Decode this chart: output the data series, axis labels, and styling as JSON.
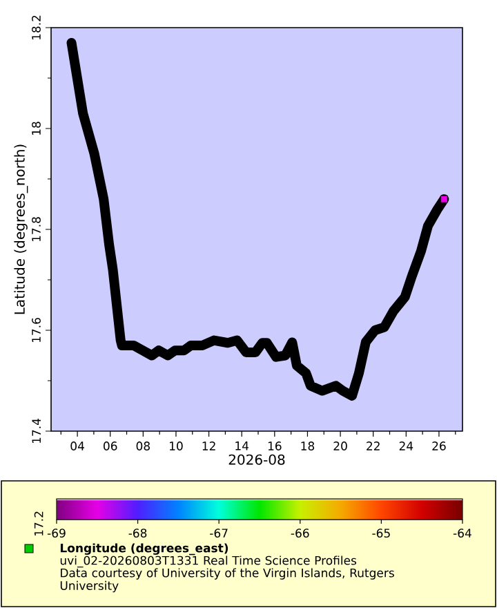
{
  "chart_data": {
    "type": "line",
    "xlabel": "2026-08",
    "ylabel": "Latitude (degrees_north)",
    "clabel": "**Longitude (degrees_east)**",
    "annotations": [
      "uvi_02-20260803T1331 Real Time Science Profiles",
      "Data courtesy of University of the Virgin Islands, Rutgers University",
      "17.2"
    ],
    "xlim": [
      2.4,
      27.43
    ],
    "ylim": [
      17.4,
      18.2
    ],
    "xticks": [
      {
        "value": 3,
        "label": null
      },
      {
        "value": 4,
        "label": "04"
      },
      {
        "value": 5,
        "label": null
      },
      {
        "value": 6,
        "label": "06"
      },
      {
        "value": 7,
        "label": null
      },
      {
        "value": 8,
        "label": "08"
      },
      {
        "value": 9,
        "label": null
      },
      {
        "value": 10,
        "label": "10"
      },
      {
        "value": 11,
        "label": null
      },
      {
        "value": 12,
        "label": "12"
      },
      {
        "value": 13,
        "label": null
      },
      {
        "value": 14,
        "label": "14"
      },
      {
        "value": 15,
        "label": null
      },
      {
        "value": 16,
        "label": "16"
      },
      {
        "value": 17,
        "label": null
      },
      {
        "value": 18,
        "label": "18"
      },
      {
        "value": 19,
        "label": null
      },
      {
        "value": 20,
        "label": "20"
      },
      {
        "value": 21,
        "label": null
      },
      {
        "value": 22,
        "label": "22"
      },
      {
        "value": 23,
        "label": null
      },
      {
        "value": 24,
        "label": "24"
      },
      {
        "value": 25,
        "label": null
      },
      {
        "value": 26,
        "label": "26"
      },
      {
        "value": 27,
        "label": null
      }
    ],
    "yticks": [
      17.4,
      {
        "value": 17.5,
        "label": null
      },
      17.6,
      {
        "value": 17.7,
        "label": null
      },
      17.8,
      {
        "value": 17.9,
        "label": null
      },
      18,
      {
        "value": 18.1,
        "label": null
      },
      18.2
    ],
    "clim": [
      -69,
      -64
    ],
    "cticks": [
      -69,
      -68,
      -67,
      -66,
      -65,
      -64
    ],
    "series": [
      {
        "color": "#000000",
        "x": [
          3.64,
          4.34,
          5.03,
          5.6,
          5.93,
          6.16,
          6.63,
          6.71,
          7.42,
          7.97,
          8.53,
          8.95,
          9.5,
          9.94,
          10.49,
          10.91,
          11.61,
          12.31,
          13.15,
          13.72,
          14.27,
          14.83,
          15.25,
          15.53,
          16.09,
          16.65,
          17.07,
          17.35,
          17.91,
          18.19,
          18.89,
          19.73,
          20.15,
          20.71,
          21.13,
          21.55,
          22.11,
          22.67,
          23.23,
          23.93,
          24.35,
          24.91,
          25.33,
          25.89,
          26.31
        ],
        "values": [
          18.17,
          18.03,
          17.95,
          17.86,
          17.77,
          17.72,
          17.58,
          17.57,
          17.57,
          17.56,
          17.55,
          17.56,
          17.55,
          17.56,
          17.56,
          17.57,
          17.57,
          17.58,
          17.575,
          17.58,
          17.556,
          17.556,
          17.575,
          17.575,
          17.547,
          17.55,
          17.576,
          17.53,
          17.515,
          17.49,
          17.48,
          17.49,
          17.48,
          17.47,
          17.515,
          17.577,
          17.6,
          17.606,
          17.638,
          17.666,
          17.707,
          17.757,
          17.807,
          17.839,
          17.86
        ]
      },
      {
        "type": "scatter",
        "marker": "square",
        "x": [
          26.31
        ],
        "values": [
          17.86
        ],
        "cvalues": [
          -68.5
        ]
      }
    ]
  }
}
